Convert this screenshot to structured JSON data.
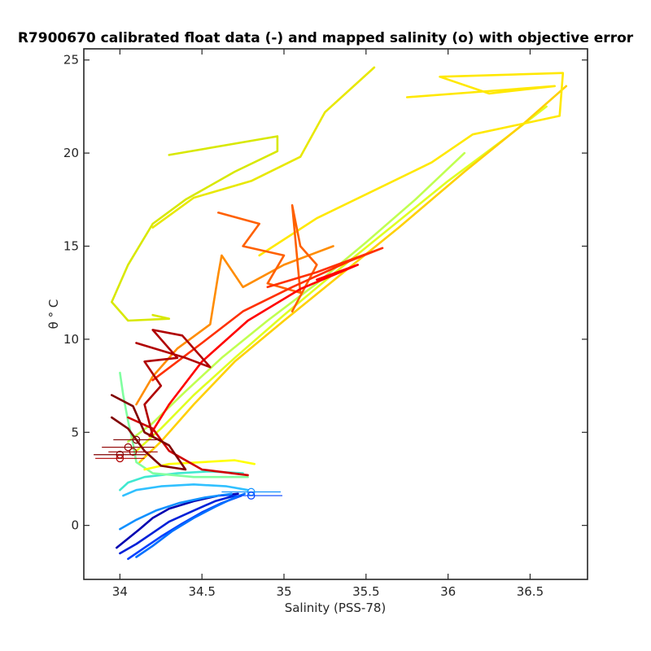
{
  "chart_data": {
    "type": "line",
    "title": "R7900670 calibrated float data (-) and mapped salinity (o) with objective error",
    "xlabel": "Salinity (PSS-78)",
    "ylabel": "θ ° C",
    "xlim": [
      33.78,
      36.85
    ],
    "ylim": [
      -2.9,
      25.6
    ],
    "xticks": [
      34,
      34.5,
      35,
      35.5,
      36,
      36.5
    ],
    "xtick_labels": [
      "34",
      "34.5",
      "35",
      "35.5",
      "36",
      "36.5"
    ],
    "yticks": [
      0,
      5,
      10,
      15,
      20,
      25
    ],
    "ytick_labels": [
      "0",
      "5",
      "10",
      "15",
      "20",
      "25"
    ],
    "grid": false,
    "colormap": "jet (profile number)",
    "series": [
      {
        "color": "#0000b0",
        "values": [
          [
            33.98,
            -1.2
          ],
          [
            34.05,
            -0.7
          ],
          [
            34.12,
            -0.2
          ],
          [
            34.2,
            0.4
          ],
          [
            34.3,
            0.9
          ],
          [
            34.45,
            1.3
          ],
          [
            34.6,
            1.6
          ],
          [
            34.72,
            1.7
          ]
        ]
      },
      {
        "color": "#0020d8",
        "values": [
          [
            34.0,
            -1.5
          ],
          [
            34.1,
            -1.0
          ],
          [
            34.2,
            -0.4
          ],
          [
            34.3,
            0.2
          ],
          [
            34.45,
            0.8
          ],
          [
            34.58,
            1.3
          ],
          [
            34.7,
            1.6
          ]
        ]
      },
      {
        "color": "#0040ff",
        "values": [
          [
            34.05,
            -1.8
          ],
          [
            34.15,
            -1.2
          ],
          [
            34.25,
            -0.6
          ],
          [
            34.38,
            0.1
          ],
          [
            34.5,
            0.7
          ],
          [
            34.62,
            1.2
          ],
          [
            34.74,
            1.6
          ]
        ]
      },
      {
        "color": "#0070ff",
        "values": [
          [
            34.1,
            -1.7
          ],
          [
            34.2,
            -1.1
          ],
          [
            34.32,
            -0.3
          ],
          [
            34.45,
            0.4
          ],
          [
            34.58,
            1.0
          ],
          [
            34.7,
            1.5
          ],
          [
            34.76,
            1.7
          ]
        ]
      },
      {
        "color": "#1090ff",
        "values": [
          [
            34.0,
            -0.2
          ],
          [
            34.1,
            0.3
          ],
          [
            34.22,
            0.8
          ],
          [
            34.36,
            1.2
          ],
          [
            34.52,
            1.5
          ],
          [
            34.68,
            1.7
          ]
        ]
      },
      {
        "color": "#30c0ff",
        "values": [
          [
            34.02,
            1.6
          ],
          [
            34.1,
            1.9
          ],
          [
            34.25,
            2.1
          ],
          [
            34.45,
            2.2
          ],
          [
            34.65,
            2.1
          ],
          [
            34.78,
            1.9
          ]
        ]
      },
      {
        "color": "#40e8d0",
        "values": [
          [
            34.0,
            1.9
          ],
          [
            34.05,
            2.3
          ],
          [
            34.15,
            2.6
          ],
          [
            34.35,
            2.8
          ],
          [
            34.55,
            2.9
          ],
          [
            34.75,
            2.8
          ]
        ]
      },
      {
        "color": "#80ffa0",
        "values": [
          [
            34.0,
            8.2
          ],
          [
            34.02,
            7.0
          ],
          [
            34.05,
            5.6
          ],
          [
            34.08,
            4.4
          ],
          [
            34.1,
            3.4
          ],
          [
            34.2,
            2.8
          ],
          [
            34.45,
            2.6
          ],
          [
            34.78,
            2.6
          ]
        ]
      },
      {
        "color": "#c0ff50",
        "values": [
          [
            34.05,
            4.5
          ],
          [
            34.2,
            5.5
          ],
          [
            34.4,
            7.2
          ],
          [
            34.62,
            9.0
          ],
          [
            34.9,
            11.0
          ],
          [
            35.2,
            13.0
          ],
          [
            35.5,
            15.2
          ],
          [
            35.8,
            17.5
          ],
          [
            36.1,
            20.0
          ]
        ]
      },
      {
        "color": "#e0ff20",
        "values": [
          [
            34.1,
            4.0
          ],
          [
            34.25,
            5.2
          ],
          [
            34.45,
            7.0
          ],
          [
            34.7,
            9.0
          ],
          [
            35.0,
            11.3
          ],
          [
            35.3,
            13.5
          ],
          [
            35.65,
            16.0
          ],
          [
            36.0,
            18.5
          ],
          [
            36.35,
            20.8
          ],
          [
            36.6,
            22.5
          ]
        ]
      },
      {
        "color": "#ffd000",
        "values": [
          [
            34.12,
            3.4
          ],
          [
            34.25,
            4.5
          ],
          [
            34.45,
            6.5
          ],
          [
            34.7,
            8.8
          ],
          [
            35.0,
            11.0
          ],
          [
            35.35,
            13.5
          ],
          [
            35.7,
            16.0
          ],
          [
            36.1,
            19.0
          ],
          [
            36.45,
            21.5
          ],
          [
            36.72,
            23.6
          ]
        ]
      },
      {
        "color": "#ffff00",
        "values": [
          [
            34.15,
            3.0
          ],
          [
            34.3,
            3.3
          ],
          [
            34.5,
            3.4
          ],
          [
            34.7,
            3.5
          ],
          [
            34.82,
            3.3
          ]
        ]
      },
      {
        "color": "#d8e800",
        "values": [
          [
            34.3,
            19.9
          ],
          [
            34.96,
            20.9
          ],
          [
            34.96,
            20.1
          ],
          [
            34.7,
            19.0
          ],
          [
            34.4,
            17.5
          ],
          [
            34.2,
            16.2
          ],
          [
            34.05,
            14.0
          ],
          [
            33.95,
            12.0
          ],
          [
            34.05,
            11.0
          ],
          [
            34.3,
            11.1
          ],
          [
            34.2,
            11.3
          ]
        ]
      },
      {
        "color": "#e8e800",
        "values": [
          [
            34.2,
            16.0
          ],
          [
            34.45,
            17.6
          ],
          [
            34.8,
            18.5
          ],
          [
            35.1,
            19.8
          ],
          [
            35.25,
            22.2
          ],
          [
            35.55,
            24.6
          ]
        ]
      },
      {
        "color": "#ffe800",
        "values": [
          [
            35.75,
            23.0
          ],
          [
            36.65,
            23.6
          ],
          [
            36.25,
            23.2
          ],
          [
            35.95,
            24.1
          ],
          [
            36.7,
            24.3
          ],
          [
            36.68,
            22.0
          ],
          [
            36.15,
            21.0
          ],
          [
            35.9,
            19.5
          ],
          [
            35.55,
            18.0
          ],
          [
            35.2,
            16.5
          ],
          [
            34.85,
            14.5
          ]
        ]
      },
      {
        "color": "#ff8c00",
        "values": [
          [
            34.1,
            6.5
          ],
          [
            34.2,
            8.0
          ],
          [
            34.35,
            9.5
          ],
          [
            34.55,
            10.8
          ],
          [
            34.6,
            13.5
          ],
          [
            34.62,
            14.5
          ],
          [
            34.75,
            12.8
          ],
          [
            35.0,
            14.0
          ],
          [
            35.3,
            15.0
          ]
        ]
      },
      {
        "color": "#ff6000",
        "values": [
          [
            34.6,
            16.8
          ],
          [
            34.85,
            16.2
          ],
          [
            34.75,
            15.0
          ],
          [
            35.0,
            14.5
          ],
          [
            34.9,
            13.0
          ],
          [
            35.1,
            12.5
          ],
          [
            35.05,
            17.2
          ],
          [
            35.1,
            15.0
          ],
          [
            35.2,
            14.0
          ],
          [
            35.05,
            11.5
          ]
        ]
      },
      {
        "color": "#ff3000",
        "values": [
          [
            34.2,
            7.8
          ],
          [
            34.5,
            9.8
          ],
          [
            34.75,
            11.5
          ],
          [
            35.05,
            12.8
          ],
          [
            35.4,
            14.2
          ],
          [
            35.6,
            14.9
          ],
          [
            35.2,
            13.6
          ],
          [
            34.9,
            12.8
          ]
        ]
      },
      {
        "color": "#ff0000",
        "values": [
          [
            34.18,
            4.8
          ],
          [
            34.3,
            6.5
          ],
          [
            34.5,
            8.8
          ],
          [
            34.78,
            11.0
          ],
          [
            35.1,
            12.7
          ],
          [
            35.45,
            14.0
          ],
          [
            35.2,
            13.2
          ]
        ]
      },
      {
        "color": "#d00000",
        "values": [
          [
            34.05,
            5.8
          ],
          [
            34.2,
            5.2
          ],
          [
            34.3,
            4.0
          ],
          [
            34.5,
            3.0
          ],
          [
            34.78,
            2.7
          ]
        ]
      },
      {
        "color": "#b00000",
        "values": [
          [
            34.1,
            9.8
          ],
          [
            34.4,
            9.0
          ],
          [
            34.55,
            8.5
          ],
          [
            34.38,
            10.2
          ],
          [
            34.2,
            10.5
          ],
          [
            34.35,
            9.0
          ],
          [
            34.15,
            8.8
          ],
          [
            34.25,
            7.5
          ],
          [
            34.15,
            6.5
          ],
          [
            34.2,
            4.8
          ]
        ]
      },
      {
        "color": "#800000",
        "values": [
          [
            33.95,
            5.8
          ],
          [
            34.05,
            5.2
          ],
          [
            34.15,
            4.0
          ],
          [
            34.25,
            3.2
          ],
          [
            34.4,
            3.0
          ],
          [
            34.3,
            4.3
          ],
          [
            34.15,
            5.0
          ],
          [
            34.08,
            6.4
          ],
          [
            33.95,
            7.0
          ]
        ]
      }
    ],
    "mapped_salinity": [
      {
        "x": 34.1,
        "y": 4.6,
        "xerr": 0.14,
        "color": "#800000"
      },
      {
        "x": 34.05,
        "y": 4.2,
        "xerr": 0.16,
        "color": "#900000"
      },
      {
        "x": 34.08,
        "y": 3.95,
        "xerr": 0.15,
        "color": "#a00000"
      },
      {
        "x": 34.0,
        "y": 3.8,
        "xerr": 0.16,
        "color": "#800000"
      },
      {
        "x": 34.0,
        "y": 3.6,
        "xerr": 0.15,
        "color": "#b00000"
      },
      {
        "x": 34.8,
        "y": 1.8,
        "xerr": 0.18,
        "color": "#1090ff"
      },
      {
        "x": 34.8,
        "y": 1.6,
        "xerr": 0.19,
        "color": "#0040ff"
      }
    ]
  }
}
